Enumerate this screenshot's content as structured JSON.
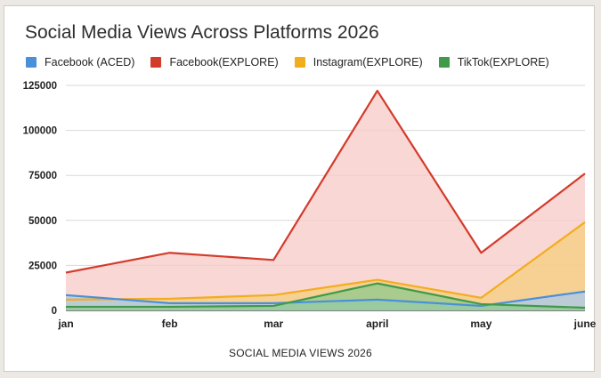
{
  "chart_data": {
    "type": "area",
    "title": "Social Media Views Across Platforms 2026",
    "xlabel": "SOCIAL MEDIA VIEWS 2026",
    "ylabel": "",
    "categories": [
      "jan",
      "feb",
      "mar",
      "april",
      "may",
      "june"
    ],
    "ylim": [
      0,
      125000
    ],
    "yticks": [
      0,
      25000,
      50000,
      75000,
      100000,
      125000
    ],
    "grid": true,
    "legend_position": "top",
    "series": [
      {
        "name": "Facebook (ACED)",
        "color": "#4a90d9",
        "fill": "#a9c9ee",
        "values": [
          8500,
          4000,
          4000,
          6000,
          2500,
          10500
        ]
      },
      {
        "name": "Facebook(EXPLORE)",
        "color": "#d33b2b",
        "fill": "#f7c9c6",
        "values": [
          21000,
          32000,
          28000,
          122000,
          32000,
          76000
        ]
      },
      {
        "name": "Instagram(EXPLORE)",
        "color": "#f2ad1f",
        "fill": "#f5cd7e",
        "values": [
          6000,
          6500,
          8500,
          17000,
          7000,
          49000
        ]
      },
      {
        "name": "TikTok(EXPLORE)",
        "color": "#3f9a4a",
        "fill": "#8fca8c",
        "values": [
          2000,
          2000,
          2500,
          15000,
          3500,
          1500
        ]
      }
    ]
  }
}
